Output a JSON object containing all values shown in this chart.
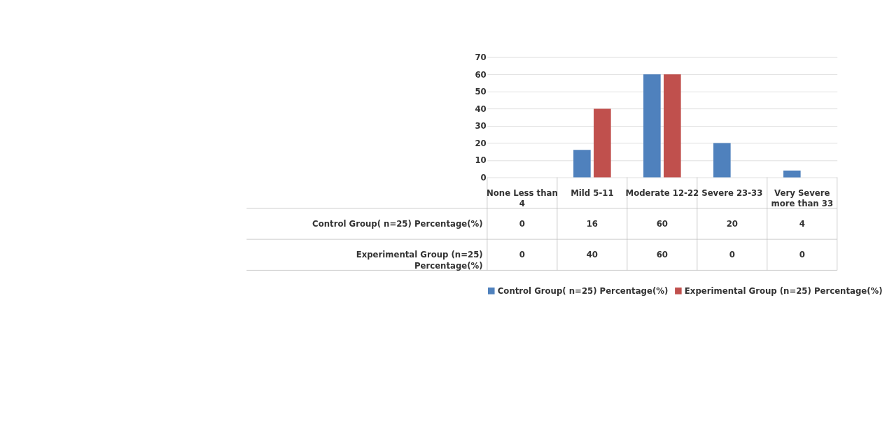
{
  "chart_data": {
    "type": "bar",
    "categories": [
      "None Less than 4",
      "Mild 5-11",
      "Moderate 12-22",
      "Severe 23-33",
      "Very Severe more than 33"
    ],
    "series": [
      {
        "name": "Control Group( n=25) Percentage(%)",
        "color": "#4f81bd",
        "values": [
          0,
          16,
          60,
          20,
          4
        ]
      },
      {
        "name": "Experimental Group (n=25) Percentage(%)",
        "color": "#c0504d",
        "values": [
          0,
          40,
          60,
          0,
          0
        ]
      }
    ],
    "ylim": [
      0,
      70
    ],
    "yticks": [
      0,
      10,
      20,
      30,
      40,
      50,
      60,
      70
    ],
    "grid": "y",
    "legend": "bottom",
    "data_labels": true
  }
}
